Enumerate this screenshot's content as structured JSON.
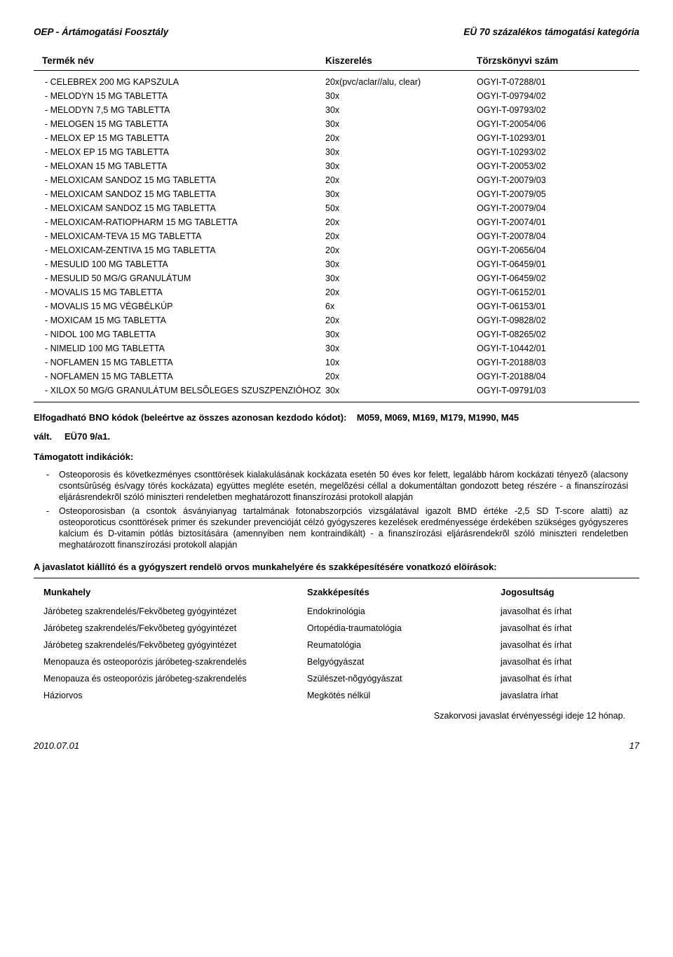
{
  "header": {
    "left": "OEP - Ártámogatási Foosztály",
    "right": "EÜ 70 százalékos támogatási kategória"
  },
  "table": {
    "headers": {
      "name": "Termék név",
      "pack": "Kiszerelés",
      "reg": "Törzskönyvi szám"
    },
    "rows": [
      {
        "name": "- CELEBREX 200 MG KAPSZULA",
        "pack": "20x(pvc/aclar//alu, clear)",
        "reg": "OGYI-T-07288/01"
      },
      {
        "name": "- MELODYN 15 MG TABLETTA",
        "pack": "30x",
        "reg": "OGYI-T-09794/02"
      },
      {
        "name": "- MELODYN 7,5 MG TABLETTA",
        "pack": "30x",
        "reg": "OGYI-T-09793/02"
      },
      {
        "name": "- MELOGEN 15 MG TABLETTA",
        "pack": "30x",
        "reg": "OGYI-T-20054/06"
      },
      {
        "name": "- MELOX EP 15 MG TABLETTA",
        "pack": "20x",
        "reg": "OGYI-T-10293/01"
      },
      {
        "name": "- MELOX EP 15 MG TABLETTA",
        "pack": "30x",
        "reg": "OGYI-T-10293/02"
      },
      {
        "name": "- MELOXAN 15 MG TABLETTA",
        "pack": "30x",
        "reg": "OGYI-T-20053/02"
      },
      {
        "name": "- MELOXICAM SANDOZ 15 MG TABLETTA",
        "pack": "20x",
        "reg": "OGYI-T-20079/03"
      },
      {
        "name": "- MELOXICAM SANDOZ 15 MG TABLETTA",
        "pack": "30x",
        "reg": "OGYI-T-20079/05"
      },
      {
        "name": "- MELOXICAM SANDOZ 15 MG TABLETTA",
        "pack": "50x",
        "reg": "OGYI-T-20079/04"
      },
      {
        "name": "- MELOXICAM-RATIOPHARM 15 MG TABLETTA",
        "pack": "20x",
        "reg": "OGYI-T-20074/01"
      },
      {
        "name": "- MELOXICAM-TEVA 15 MG TABLETTA",
        "pack": "20x",
        "reg": "OGYI-T-20078/04"
      },
      {
        "name": "- MELOXICAM-ZENTIVA 15 MG TABLETTA",
        "pack": "20x",
        "reg": "OGYI-T-20656/04"
      },
      {
        "name": "- MESULID 100 MG TABLETTA",
        "pack": "30x",
        "reg": "OGYI-T-06459/01"
      },
      {
        "name": "- MESULID 50 MG/G GRANULÁTUM",
        "pack": "30x",
        "reg": "OGYI-T-06459/02"
      },
      {
        "name": "- MOVALIS 15 MG TABLETTA",
        "pack": "20x",
        "reg": "OGYI-T-06152/01"
      },
      {
        "name": "- MOVALIS 15 MG VÉGBÉLKÚP",
        "pack": "6x",
        "reg": "OGYI-T-06153/01"
      },
      {
        "name": "- MOXICAM 15 MG TABLETTA",
        "pack": "20x",
        "reg": "OGYI-T-09828/02"
      },
      {
        "name": "- NIDOL 100 MG TABLETTA",
        "pack": "30x",
        "reg": "OGYI-T-08265/02"
      },
      {
        "name": "- NIMELID 100 MG TABLETTA",
        "pack": "30x",
        "reg": "OGYI-T-10442/01"
      },
      {
        "name": "- NOFLAMEN 15 MG TABLETTA",
        "pack": "10x",
        "reg": "OGYI-T-20188/03"
      },
      {
        "name": "- NOFLAMEN 15 MG TABLETTA",
        "pack": "20x",
        "reg": "OGYI-T-20188/04"
      },
      {
        "name": "- XILOX 50 MG/G GRANULÁTUM BELSÕLEGES SZUSZPENZIÓHOZ",
        "pack": "30x",
        "reg": "OGYI-T-09791/03"
      }
    ]
  },
  "bno": {
    "label": "Elfogadható BNO kódok (beleértve az összes azonosan kezdodo kódot):",
    "codes": "M059, M069, M169, M179, M1990, M45"
  },
  "section": {
    "valt": "vált.",
    "code": "EÜ70 9/a1."
  },
  "tamogatott": {
    "title": "Támogatott indikációk:",
    "items": [
      "Osteoporosis és következményes csonttörések kialakulásának kockázata esetén 50 éves kor felett, legalább három kockázati tényezõ (alacsony csontsûrûség és/vagy törés kockázata) együttes megléte esetén, megelõzési céllal a dokumentáltan gondozott beteg részére - a finanszírozási eljárásrendekrõl szóló miniszteri rendeletben meghatározott finanszírozási protokoll alapján",
      "Osteoporosisban (a csontok ásványianyag tartalmának fotonabszorpciós vizsgálatával igazolt BMD értéke -2,5 SD T-score alatti) az osteoporoticus csonttörések primer és szekunder prevencióját célzó gyógyszeres kezelések eredményessége érdekében szükséges gyógyszeres kalcium és D-vitamin pótlás biztosítására (amennyiben nem kontraindikált) - a finanszírozási eljárásrendekrõl szóló miniszteri rendeletben meghatározott finanszírozási protokoll alapján"
    ]
  },
  "javaslat": {
    "title": "A javaslatot kiállító és a gyógyszert rendelö orvos munkahelyére és szakképesítésére vonatkozó elöírások:",
    "headers": {
      "workplace": "Munkahely",
      "spec": "Szakképesítés",
      "right": "Jogosultság"
    },
    "rows": [
      {
        "workplace": "Járóbeteg szakrendelés/Fekvõbeteg gyógyintézet",
        "spec": "Endokrinológia",
        "right": "javasolhat és írhat"
      },
      {
        "workplace": "Járóbeteg szakrendelés/Fekvõbeteg gyógyintézet",
        "spec": "Ortopédia-traumatológia",
        "right": "javasolhat és írhat"
      },
      {
        "workplace": "Járóbeteg szakrendelés/Fekvõbeteg gyógyintézet",
        "spec": "Reumatológia",
        "right": "javasolhat és írhat"
      },
      {
        "workplace": "Menopauza és osteoporózis járóbeteg-szakrendelés",
        "spec": "Belgyógyászat",
        "right": "javasolhat és írhat"
      },
      {
        "workplace": "Menopauza és osteoporózis járóbeteg-szakrendelés",
        "spec": "Szülészet-nõgyógyászat",
        "right": "javasolhat és írhat"
      },
      {
        "workplace": "Háziorvos",
        "spec": "Megkötés nélkül",
        "right": "javaslatra írhat"
      }
    ],
    "validity": "Szakorvosi javaslat érvényességi ideje 12 hónap."
  },
  "footer": {
    "date": "2010.07.01",
    "page": "17"
  }
}
